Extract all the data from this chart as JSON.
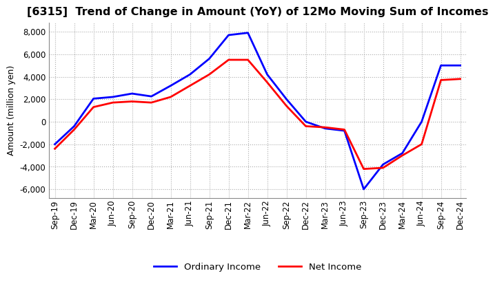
{
  "title": "[6315]  Trend of Change in Amount (YoY) of 12Mo Moving Sum of Incomes",
  "ylabel": "Amount (million yen)",
  "ylim": [
    -6800,
    8800
  ],
  "yticks": [
    -6000,
    -4000,
    -2000,
    0,
    2000,
    4000,
    6000,
    8000
  ],
  "x_labels": [
    "Sep-19",
    "Dec-19",
    "Mar-20",
    "Jun-20",
    "Sep-20",
    "Dec-20",
    "Mar-21",
    "Jun-21",
    "Sep-21",
    "Dec-21",
    "Mar-22",
    "Jun-22",
    "Sep-22",
    "Dec-22",
    "Mar-23",
    "Jun-23",
    "Sep-23",
    "Dec-23",
    "Mar-24",
    "Jun-24",
    "Sep-24",
    "Dec-24"
  ],
  "ordinary_income": [
    -2000,
    -400,
    2050,
    2200,
    2500,
    2250,
    3200,
    4200,
    5600,
    7700,
    7900,
    4200,
    2000,
    0,
    -600,
    -800,
    -6000,
    -3800,
    -2800,
    0,
    5000,
    5000
  ],
  "net_income": [
    -2400,
    -700,
    1300,
    1700,
    1800,
    1700,
    2200,
    3200,
    4200,
    5500,
    5500,
    3500,
    1400,
    -400,
    -500,
    -700,
    -4200,
    -4100,
    -3000,
    -2000,
    3700,
    3800
  ],
  "ordinary_color": "#0000FF",
  "net_color": "#FF0000",
  "legend_labels": [
    "Ordinary Income",
    "Net Income"
  ],
  "background_color": "#FFFFFF",
  "grid_color": "#AAAAAA"
}
